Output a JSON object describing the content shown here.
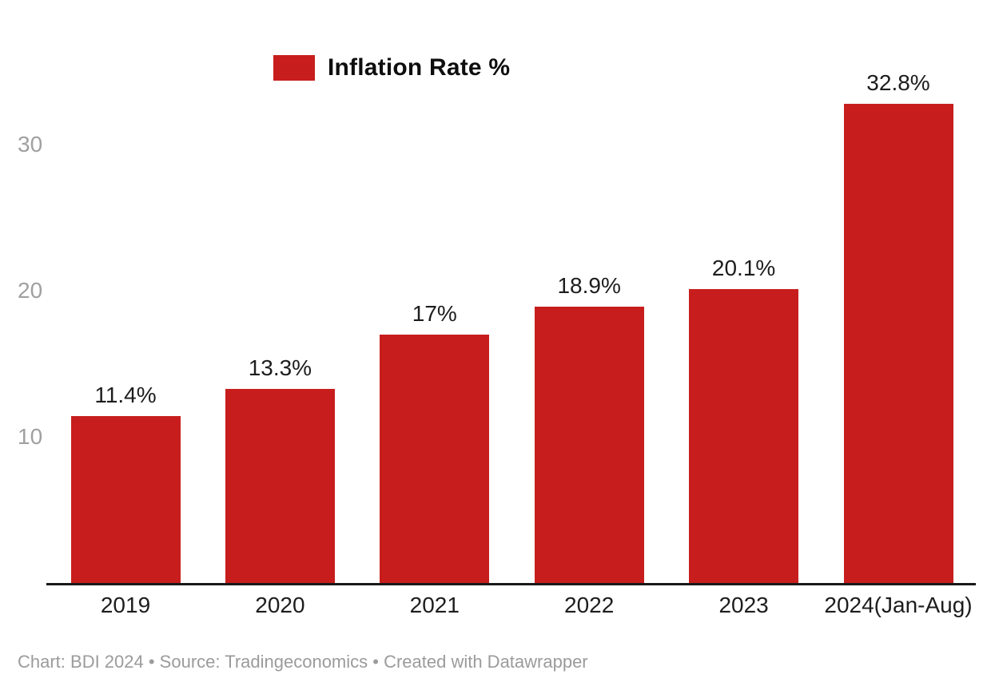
{
  "chart_data": {
    "type": "bar",
    "title": "",
    "legend": {
      "label": "Inflation Rate %",
      "color": "#c71e1d",
      "position": "top"
    },
    "categories": [
      "2019",
      "2020",
      "2021",
      "2022",
      "2023",
      "2024(Jan-Aug)"
    ],
    "values": [
      11.4,
      13.3,
      17,
      18.9,
      20.1,
      32.8
    ],
    "value_labels": [
      "11.4%",
      "13.3%",
      "17%",
      "18.9%",
      "20.1%",
      "32.8%"
    ],
    "yticks": [
      10,
      20,
      30
    ],
    "ylim": [
      0,
      32.8
    ],
    "xlabel": "",
    "ylabel": "",
    "grid": false,
    "bar_color": "#c71e1d",
    "axis_line_color": "#191919",
    "tick_label_color": "#a0a0a0",
    "category_label_color": "#1d1d1d",
    "value_label_color": "#1d1d1d"
  },
  "footer": {
    "text": "Chart: BDI 2024 • Source: Tradingeconomics • Created with Datawrapper"
  }
}
